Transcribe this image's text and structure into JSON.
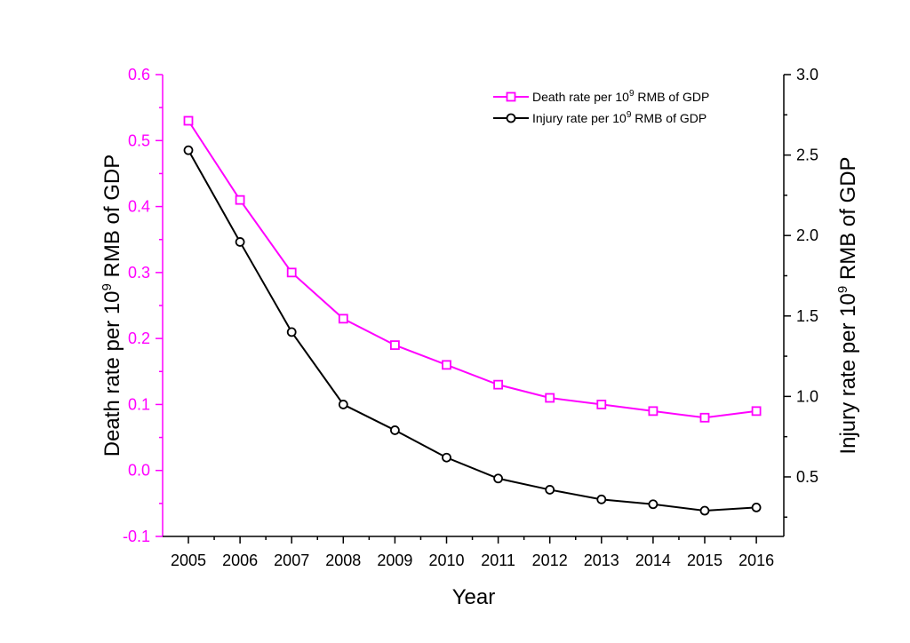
{
  "chart_data": {
    "type": "line",
    "xlabel": "Year",
    "x": [
      2005,
      2006,
      2007,
      2008,
      2009,
      2010,
      2011,
      2012,
      2013,
      2014,
      2015,
      2016
    ],
    "y_left": {
      "label_prefix": "Death rate per 10",
      "label_sup": "9",
      "label_suffix": " RMB of GDP",
      "ylim": [
        -0.1,
        0.6
      ],
      "ticks": [
        "-0.1",
        "0.0",
        "0.1",
        "0.2",
        "0.3",
        "0.4",
        "0.5",
        "0.6"
      ],
      "color": "#ff00ff"
    },
    "y_right": {
      "label_prefix": "Injury rate per 10",
      "label_sup": "9",
      "label_suffix": " RMB of GDP",
      "ylim": [
        0.13,
        3.0
      ],
      "ticks": [
        "0.5",
        "1.0",
        "1.5",
        "2.0",
        "2.5",
        "3.0"
      ],
      "color": "#000000"
    },
    "series": [
      {
        "name_prefix": "Death rate per 10",
        "name_sup": "9",
        "name_suffix": " RMB of GDP",
        "axis": "left",
        "marker": "square",
        "color": "#ff00ff",
        "values": [
          0.53,
          0.41,
          0.3,
          0.23,
          0.19,
          0.16,
          0.13,
          0.11,
          0.1,
          0.09,
          0.08,
          0.09
        ]
      },
      {
        "name_prefix": "Injury rate per 10",
        "name_sup": "9",
        "name_suffix": " RMB of GDP",
        "axis": "right",
        "marker": "circle",
        "color": "#000000",
        "values": [
          2.53,
          1.96,
          1.4,
          0.95,
          0.79,
          0.62,
          0.49,
          0.42,
          0.36,
          0.33,
          0.29,
          0.31
        ]
      }
    ],
    "legend_position": "top-right",
    "grid": false
  }
}
